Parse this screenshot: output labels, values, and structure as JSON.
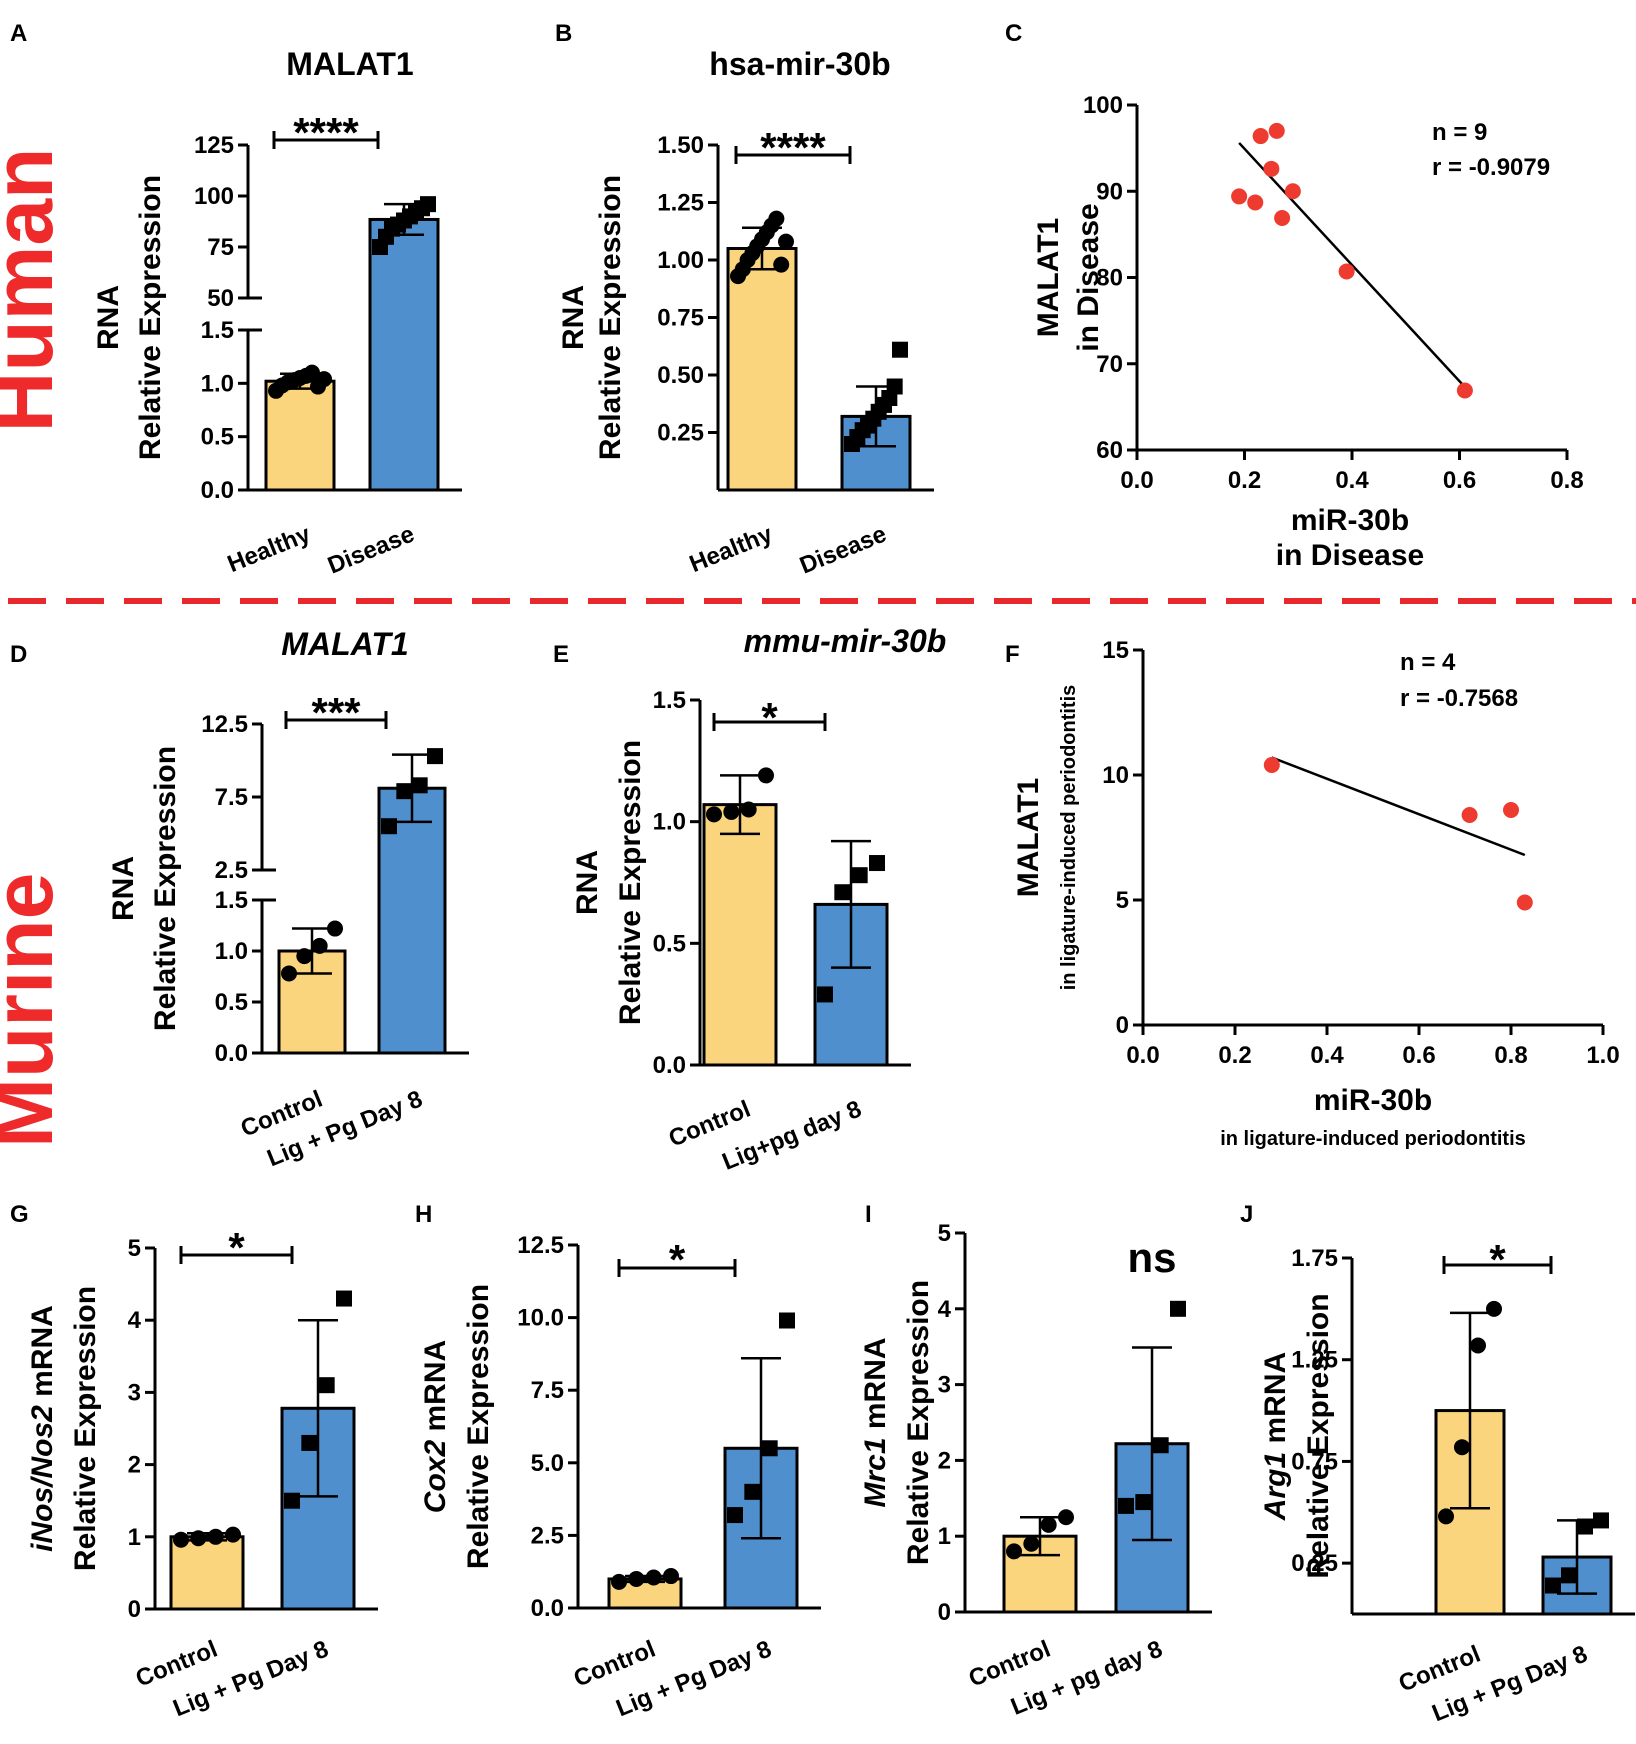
{
  "row_labels": {
    "top": "Human",
    "bottom": "Murine"
  },
  "colors": {
    "healthy": "#fbd57d",
    "disease": "#4f8fce",
    "scatter": "#ee3b30",
    "divider": "#e8282c"
  },
  "chart_data": [
    {
      "id": "A",
      "type": "bar",
      "title": "MALAT1",
      "title_italic": false,
      "ylabel": [
        "RNA",
        "Relative Expression"
      ],
      "categories": [
        "Healthy",
        "Disease"
      ],
      "values": [
        1.02,
        88.5
      ],
      "errors": [
        0.07,
        7.5
      ],
      "points": [
        [
          0.93,
          0.98,
          1.01,
          1.03,
          1.05,
          1.07,
          1.1,
          0.97,
          1.04
        ],
        [
          75,
          80,
          84,
          86,
          88,
          90,
          92,
          94,
          96
        ]
      ],
      "markers": [
        "circle",
        "square"
      ],
      "axis_break": {
        "lower": [
          0,
          1.5
        ],
        "upper": [
          50,
          125
        ]
      },
      "yticks_lower": [
        "0.0",
        "0.5",
        "1.0",
        "1.5"
      ],
      "yticks_upper": [
        "50",
        "75",
        "100",
        "125"
      ],
      "significance": "****"
    },
    {
      "id": "B",
      "type": "bar",
      "title": "hsa-mir-30b",
      "title_italic": false,
      "ylabel": [
        "RNA",
        "Relative Expression"
      ],
      "categories": [
        "Healthy",
        "Disease"
      ],
      "values": [
        1.05,
        0.32
      ],
      "errors": [
        0.09,
        0.13
      ],
      "points": [
        [
          0.93,
          0.96,
          1.0,
          1.03,
          1.06,
          1.09,
          1.12,
          1.15,
          1.18,
          0.98,
          1.08
        ],
        [
          0.2,
          0.23,
          0.26,
          0.28,
          0.31,
          0.34,
          0.37,
          0.4,
          0.45,
          0.61
        ]
      ],
      "markers": [
        "circle",
        "square"
      ],
      "ylim": [
        0,
        1.5
      ],
      "yticks": [
        "0.25",
        "0.50",
        "0.75",
        "1.00",
        "1.25",
        "1.50"
      ],
      "significance": "****"
    },
    {
      "id": "C",
      "type": "scatter",
      "xlabel": [
        "miR-30b",
        "in Disease"
      ],
      "ylabel": [
        "MALAT1",
        "in Disease"
      ],
      "xlim": [
        0,
        0.8
      ],
      "ylim": [
        60,
        100
      ],
      "xticks": [
        "0.0",
        "0.2",
        "0.4",
        "0.6",
        "0.8"
      ],
      "yticks": [
        "60",
        "70",
        "80",
        "90",
        "100"
      ],
      "x": [
        0.19,
        0.22,
        0.23,
        0.25,
        0.26,
        0.27,
        0.29,
        0.39,
        0.61
      ],
      "y": [
        89.4,
        88.7,
        96.4,
        92.6,
        97.0,
        86.9,
        90.0,
        80.7,
        66.9
      ],
      "fit": {
        "x": [
          0.19,
          0.61
        ],
        "y": [
          95.6,
          67.3
        ]
      },
      "annotation": [
        "n = 9",
        "r = -0.9079"
      ]
    },
    {
      "id": "D",
      "type": "bar",
      "title": "MALAT1",
      "title_italic": true,
      "ylabel": [
        "RNA",
        "Relative Expression"
      ],
      "categories": [
        "Control",
        "Lig + Pg Day 8"
      ],
      "values": [
        1.0,
        8.1
      ],
      "errors": [
        0.22,
        2.3
      ],
      "points": [
        [
          0.78,
          0.95,
          1.05,
          1.22
        ],
        [
          5.5,
          7.9,
          8.3,
          10.3
        ]
      ],
      "markers": [
        "circle",
        "square"
      ],
      "axis_break": {
        "lower": [
          0,
          1.5
        ],
        "upper": [
          2.5,
          12.5
        ]
      },
      "yticks_lower": [
        "0.0",
        "0.5",
        "1.0",
        "1.5"
      ],
      "yticks_upper": [
        "2.5",
        "7.5",
        "12.5"
      ],
      "significance": "***"
    },
    {
      "id": "E",
      "type": "bar",
      "title": "mmu-mir-30b",
      "title_italic": true,
      "ylabel": [
        "RNA",
        "Relative Expression"
      ],
      "categories": [
        "Control",
        "Lig+pg day 8"
      ],
      "values": [
        1.07,
        0.66
      ],
      "errors": [
        0.12,
        0.26
      ],
      "points": [
        [
          1.03,
          1.04,
          1.05,
          1.19
        ],
        [
          0.29,
          0.71,
          0.78,
          0.83
        ]
      ],
      "markers": [
        "circle",
        "square"
      ],
      "ylim": [
        0,
        1.5
      ],
      "yticks": [
        "0.0",
        "0.5",
        "1.0",
        "1.5"
      ],
      "significance": "*"
    },
    {
      "id": "F",
      "type": "scatter",
      "xlabel": [
        "miR-30b",
        "in ligature-induced periodontitis"
      ],
      "ylabel": [
        "MALAT1",
        "in ligature-induced periodontitis"
      ],
      "xlim": [
        0,
        1.0
      ],
      "ylim": [
        0,
        15
      ],
      "xticks": [
        "0.0",
        "0.2",
        "0.4",
        "0.6",
        "0.8",
        "1.0"
      ],
      "yticks": [
        "0",
        "5",
        "10",
        "15"
      ],
      "x": [
        0.28,
        0.71,
        0.8,
        0.83
      ],
      "y": [
        10.4,
        8.4,
        8.6,
        4.9
      ],
      "fit": {
        "x": [
          0.28,
          0.83
        ],
        "y": [
          10.7,
          6.8
        ]
      },
      "annotation": [
        "n = 4",
        "r = -0.7568"
      ]
    },
    {
      "id": "G",
      "type": "bar",
      "title": "",
      "ylabel": [
        "iNos/Nos2 mRNA",
        "Relative Expression"
      ],
      "ylabel_italic_prefix": "iNos/Nos2",
      "categories": [
        "Control",
        "Lig + Pg Day 8"
      ],
      "values": [
        1.0,
        2.78
      ],
      "errors": [
        0.05,
        1.22
      ],
      "points": [
        [
          0.96,
          0.98,
          1.0,
          1.03
        ],
        [
          1.5,
          2.3,
          3.1,
          4.3
        ]
      ],
      "markers": [
        "circle",
        "square"
      ],
      "ylim": [
        0,
        5
      ],
      "yticks": [
        "0",
        "1",
        "2",
        "3",
        "4",
        "5"
      ],
      "significance": "*"
    },
    {
      "id": "H",
      "type": "bar",
      "title": "",
      "ylabel": [
        "Cox2 mRNA",
        "Relative Expression"
      ],
      "ylabel_italic_prefix": "Cox2",
      "categories": [
        "Control",
        "Lig + Pg Day 8"
      ],
      "values": [
        1.0,
        5.5
      ],
      "errors": [
        0.1,
        3.1
      ],
      "points": [
        [
          0.9,
          1.0,
          1.05,
          1.1
        ],
        [
          3.2,
          4.0,
          5.5,
          9.9
        ]
      ],
      "markers": [
        "circle",
        "square"
      ],
      "ylim": [
        0,
        12.5
      ],
      "yticks": [
        "0.0",
        "2.5",
        "5.0",
        "7.5",
        "10.0",
        "12.5"
      ],
      "significance": "*"
    },
    {
      "id": "I",
      "type": "bar",
      "title": "",
      "ylabel": [
        "Mrc1 mRNA",
        "Relative Expression"
      ],
      "ylabel_italic_prefix": "Mrc1",
      "categories": [
        "Control",
        "Lig + pg day 8"
      ],
      "values": [
        1.0,
        2.22
      ],
      "errors": [
        0.25,
        1.27
      ],
      "points": [
        [
          0.8,
          0.9,
          1.15,
          1.25
        ],
        [
          1.4,
          1.45,
          2.2,
          4.0
        ]
      ],
      "markers": [
        "circle",
        "square"
      ],
      "ylim": [
        0,
        5
      ],
      "yticks": [
        "0",
        "1",
        "2",
        "3",
        "4",
        "5"
      ],
      "significance": "ns"
    },
    {
      "id": "J",
      "type": "bar",
      "title": "",
      "ylabel": [
        "Arg1 mRNA",
        "Relative Expression"
      ],
      "ylabel_italic_prefix": "Arg1",
      "categories": [
        "Control",
        "Lig + Pg Day 8"
      ],
      "values": [
        1.0,
        0.28
      ],
      "errors": [
        0.48,
        0.18
      ],
      "points": [
        [
          0.48,
          0.82,
          1.32,
          1.5
        ],
        [
          0.14,
          0.19,
          0.43,
          0.46
        ]
      ],
      "markers": [
        "circle",
        "square"
      ],
      "ylim": [
        0,
        1.75
      ],
      "yticks": [
        "0.25",
        "0.75",
        "1.25",
        "1.75"
      ],
      "ytick_values": [
        0.25,
        0.75,
        1.25,
        1.75
      ],
      "significance": "*"
    }
  ]
}
